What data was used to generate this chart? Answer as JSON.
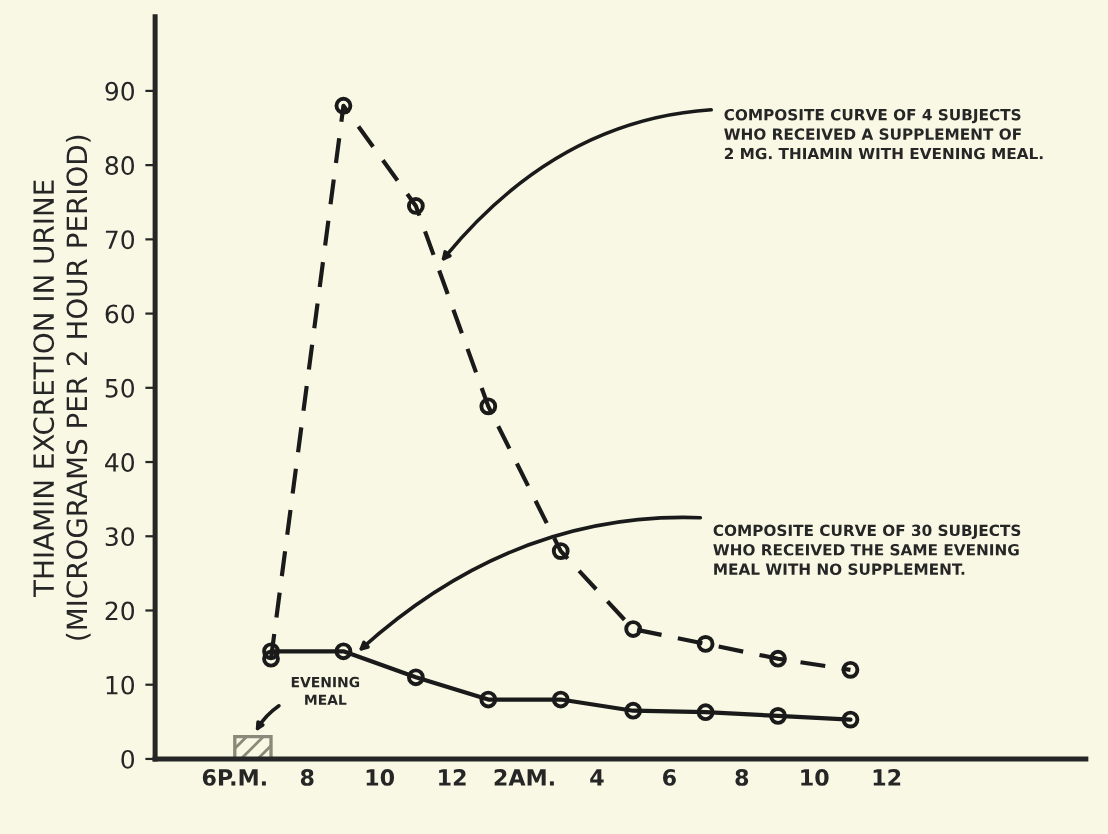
{
  "chart_data": {
    "type": "line",
    "ylabel": "THIAMIN EXCRETION IN URINE\n(MICROGRAMS PER 2 HOUR PERIOD)",
    "categories": [
      "6P.M.",
      null,
      "8",
      null,
      "10",
      null,
      "12",
      null,
      "2AM.",
      null,
      "4",
      null,
      "6",
      null,
      "8",
      null,
      "10",
      null,
      "12"
    ],
    "ylim": [
      0,
      100
    ],
    "yticks": [
      0,
      10,
      20,
      30,
      40,
      50,
      60,
      70,
      80,
      90
    ],
    "grid": false,
    "marker": "circle",
    "series": [
      {
        "line_style": "dashed",
        "color": "#1a1a1a",
        "values": [
          null,
          13.5,
          null,
          88,
          null,
          74.5,
          null,
          47.5,
          null,
          28,
          null,
          17.5,
          null,
          15.5,
          null,
          13.5,
          null,
          12,
          null
        ]
      },
      {
        "line_style": "solid",
        "color": "#1a1a1a",
        "values": [
          null,
          14.5,
          null,
          14.5,
          null,
          11,
          null,
          8,
          null,
          8,
          null,
          6.5,
          null,
          6.3,
          null,
          5.8,
          null,
          5.3,
          null
        ]
      },
      {
        "type": "bar",
        "color": "#8a8a7a",
        "values": [
          3,
          null,
          null,
          null,
          null,
          null,
          null,
          null,
          null,
          null,
          null,
          null,
          null,
          null,
          null,
          null,
          null,
          null,
          null
        ]
      }
    ],
    "annotations": [
      "COMPOSITE CURVE OF 4 SUBJECTS\nWHO RECEIVED A SUPPLEMENT OF\n2 MG. THIAMIN WITH EVENING MEAL.",
      "COMPOSITE CURVE OF 30 SUBJECTS\nWHO RECEIVED THE SAME EVENING\nMEAL WITH NO SUPPLEMENT.",
      "EVENING\nMEAL"
    ]
  }
}
